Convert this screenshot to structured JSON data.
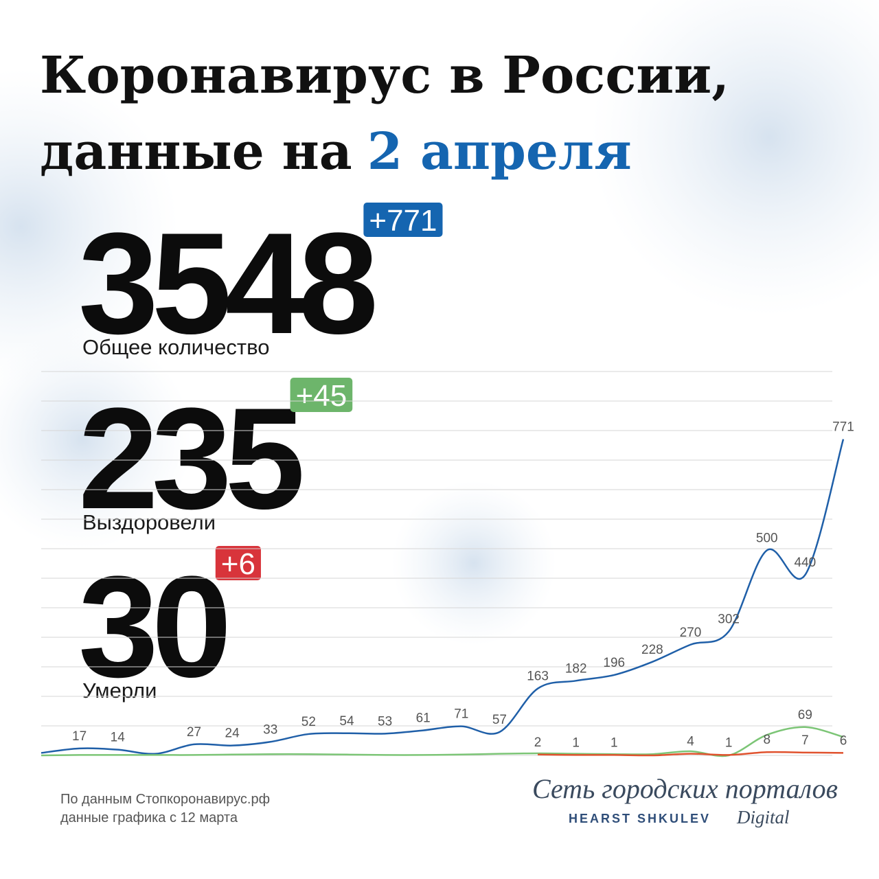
{
  "header": {
    "title_line1": "Коронавирус в России,",
    "title_line2": "данные на",
    "title_date": "2 апреля"
  },
  "stats": [
    {
      "value": 3548,
      "change": "+771",
      "label": "Общее количество",
      "color": "#1565b0"
    },
    {
      "value": 235,
      "change": "+45",
      "label": "Выздоровели",
      "color": "#6db56b"
    },
    {
      "value": 30,
      "change": "+6",
      "label": "Умерли",
      "color": "#d8343b"
    }
  ],
  "chart_data": {
    "type": "line",
    "ylim": [
      0,
      936
    ],
    "yticks": [
      0,
      72,
      144,
      216,
      288,
      360,
      432,
      504,
      576,
      648,
      720,
      792,
      864,
      936
    ],
    "grid": true,
    "series": [
      {
        "color": "#1f5fa8",
        "values": [
          6,
          17,
          14,
          4,
          27,
          24,
          33,
          52,
          54,
          53,
          61,
          71,
          57,
          163,
          182,
          196,
          228,
          270,
          302,
          500,
          440,
          771
        ],
        "value_labels": [
          null,
          "17",
          "14",
          null,
          "27",
          "24",
          "33",
          "52",
          "54",
          "53",
          "61",
          "71",
          "57",
          "163",
          "182",
          "196",
          "228",
          "270",
          "302",
          "500",
          "440",
          "771"
        ]
      },
      {
        "color": "#7cc576",
        "values": [
          0,
          1,
          1,
          1,
          1,
          2,
          3,
          3,
          2,
          1,
          1,
          2,
          4,
          5,
          4,
          3,
          3,
          10,
          0,
          50,
          69,
          45
        ],
        "value_labels": [
          null,
          null,
          null,
          null,
          null,
          null,
          null,
          null,
          null,
          null,
          null,
          null,
          null,
          null,
          null,
          null,
          null,
          null,
          null,
          null,
          "69",
          null
        ]
      },
      {
        "color": "#e0522e",
        "values": [
          null,
          null,
          null,
          null,
          null,
          null,
          null,
          null,
          null,
          null,
          null,
          null,
          null,
          2,
          1,
          1,
          0,
          4,
          1,
          8,
          7,
          6
        ],
        "value_labels": [
          null,
          null,
          null,
          null,
          null,
          null,
          null,
          null,
          null,
          null,
          null,
          null,
          null,
          "2",
          "1",
          "1",
          null,
          "4",
          "1",
          "8",
          "7",
          "6"
        ]
      }
    ]
  },
  "footer": {
    "source": "По данным Стопкоронавирус.рф",
    "note": "данные графика с 12 марта"
  },
  "logo": {
    "name": "Сеть городских порталов",
    "brand": "HEARST SHKULEV",
    "suffix": "Digital"
  }
}
